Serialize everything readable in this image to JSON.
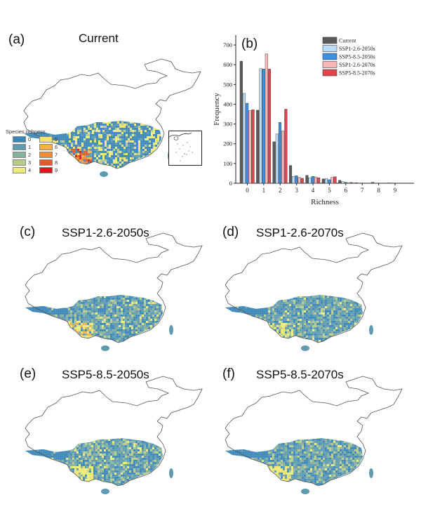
{
  "legend": {
    "title": "Species richness",
    "items": [
      {
        "label": "0",
        "color": "#3a86b8"
      },
      {
        "label": "5",
        "color": "#f2e36a"
      },
      {
        "label": "1",
        "color": "#5e9ab0"
      },
      {
        "label": "6",
        "color": "#f5b046"
      },
      {
        "label": "2",
        "color": "#86b19c"
      },
      {
        "label": "7",
        "color": "#f08a35"
      },
      {
        "label": "3",
        "color": "#b6cc8a"
      },
      {
        "label": "8",
        "color": "#e55a2a"
      },
      {
        "label": "4",
        "color": "#ecec7a"
      },
      {
        "label": "9",
        "color": "#d7191c"
      }
    ]
  },
  "maps": [
    {
      "label": "(a)",
      "title": "Current",
      "scheme": "current"
    },
    {
      "label": "(c)",
      "title": "SSP1-2.6-2050s",
      "scheme": "ssp126_2050"
    },
    {
      "label": "(d)",
      "title": "SSP1-2.6-2070s",
      "scheme": "ssp126_2070"
    },
    {
      "label": "(e)",
      "title": "SSP5-8.5-2050s",
      "scheme": "ssp585_2050"
    },
    {
      "label": "(f)",
      "title": "SSP5-8.5-2070s",
      "scheme": "ssp585_2070"
    }
  ],
  "chart_label": "(b)",
  "chart_data": {
    "type": "bar",
    "title": "",
    "xlabel": "Richness",
    "ylabel": "Frequency",
    "ylim": [
      0,
      750
    ],
    "yticks": [
      0,
      100,
      200,
      300,
      400,
      500,
      600,
      700
    ],
    "categories": [
      "0",
      "1",
      "2",
      "3",
      "4",
      "5",
      "6",
      "7",
      "8",
      "9"
    ],
    "legend_position": "top-right",
    "series": [
      {
        "name": "Current",
        "color": "#5a5a5a",
        "values": [
          618,
          370,
          210,
          90,
          40,
          22,
          15,
          3,
          5,
          2
        ]
      },
      {
        "name": "SSP1-2.6-2050s",
        "color": "#bcdcf7",
        "values": [
          455,
          580,
          250,
          35,
          28,
          24,
          8,
          0,
          0,
          0
        ]
      },
      {
        "name": "SSP5-8.5-2050s",
        "color": "#3d8fe0",
        "values": [
          405,
          578,
          308,
          38,
          35,
          18,
          5,
          0,
          0,
          0
        ]
      },
      {
        "name": "SSP1-2.6-2070s",
        "color": "#f7b6b8",
        "values": [
          368,
          655,
          265,
          30,
          32,
          30,
          3,
          0,
          0,
          0
        ]
      },
      {
        "name": "SSP5-8.5-2070s",
        "color": "#e0444c",
        "values": [
          372,
          578,
          375,
          25,
          28,
          33,
          4,
          0,
          0,
          0
        ]
      }
    ]
  }
}
